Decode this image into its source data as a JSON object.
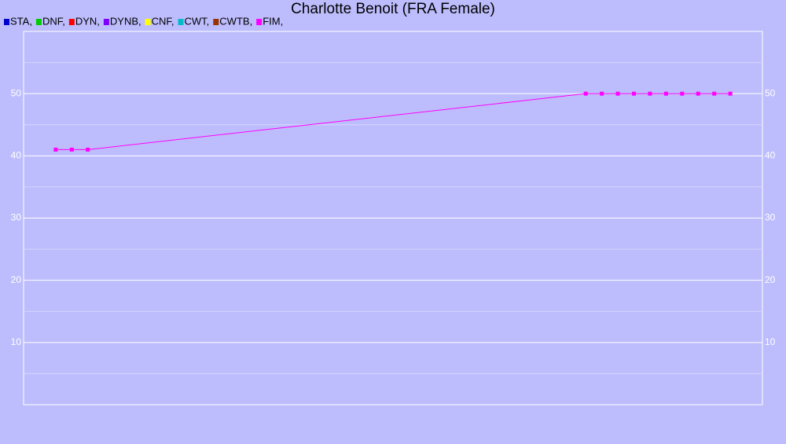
{
  "chart_data": {
    "type": "line",
    "title": "Charlotte Benoit (FRA Female)",
    "x": [
      0,
      1,
      2,
      33,
      34,
      35,
      36,
      37,
      38,
      39,
      40,
      41,
      42
    ],
    "xlim": [
      -2,
      44
    ],
    "ylim": [
      0,
      60
    ],
    "yticks": [
      10,
      20,
      30,
      40,
      50
    ],
    "minor_ygrid": [
      5,
      15,
      25,
      35,
      45,
      55
    ],
    "grid": true,
    "series": [
      {
        "name": "STA,",
        "color": "#0000cc",
        "values": [
          null,
          null,
          null,
          null,
          null,
          null,
          null,
          null,
          null,
          null,
          null,
          null,
          null
        ]
      },
      {
        "name": "DNF,",
        "color": "#00cc00",
        "values": [
          null,
          null,
          null,
          null,
          null,
          null,
          null,
          null,
          null,
          null,
          null,
          null,
          null
        ]
      },
      {
        "name": "DYN,",
        "color": "#ff0000",
        "values": [
          null,
          null,
          null,
          null,
          null,
          null,
          null,
          null,
          null,
          null,
          null,
          null,
          null
        ]
      },
      {
        "name": "DYNB,",
        "color": "#7f00ff",
        "values": [
          null,
          null,
          null,
          null,
          null,
          null,
          null,
          null,
          null,
          null,
          null,
          null,
          null
        ]
      },
      {
        "name": "CNF,",
        "color": "#ffff00",
        "values": [
          null,
          null,
          null,
          null,
          null,
          null,
          null,
          null,
          null,
          null,
          null,
          null,
          null
        ]
      },
      {
        "name": "CWT,",
        "color": "#00bbcc",
        "values": [
          null,
          null,
          null,
          null,
          null,
          null,
          null,
          null,
          null,
          null,
          null,
          null,
          null
        ]
      },
      {
        "name": "CWTB,",
        "color": "#993300",
        "values": [
          null,
          null,
          null,
          null,
          null,
          null,
          null,
          null,
          null,
          null,
          null,
          null,
          null
        ]
      },
      {
        "name": "FIM,",
        "color": "#ff00ff",
        "values": [
          41,
          41,
          41,
          50,
          50,
          50,
          50,
          50,
          50,
          50,
          50,
          50,
          50
        ]
      }
    ]
  }
}
